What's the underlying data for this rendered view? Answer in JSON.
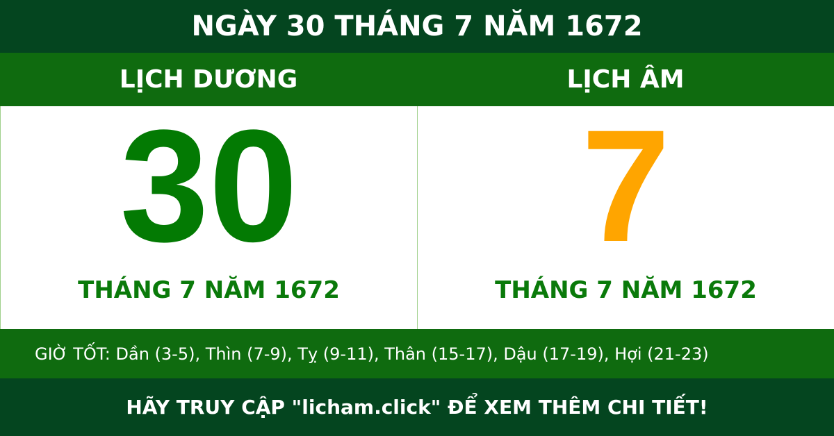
{
  "title": "NGÀY 30 THÁNG 7 NĂM 1672",
  "solar": {
    "label": "LỊCH DƯƠNG",
    "day": "30",
    "month_year": "THÁNG 7 NĂM 1672"
  },
  "lunar": {
    "label": "LỊCH ÂM",
    "day": "7",
    "month_year": "THÁNG 7 NĂM 1672"
  },
  "good_hours": "GIỜ TỐT: Dần (3-5), Thìn (7-9), Tỵ (9-11), Thân (15-17), Dậu (17-19), Hợi (21-23)",
  "footer": "HÃY TRUY CẬP \"licham.click\" ĐỂ XEM THÊM CHI TIẾT!",
  "colors": {
    "dark_green": "#04451f",
    "band_green": "#0f6b0f",
    "solar_day": "#037a03",
    "lunar_day": "#ffa500"
  }
}
